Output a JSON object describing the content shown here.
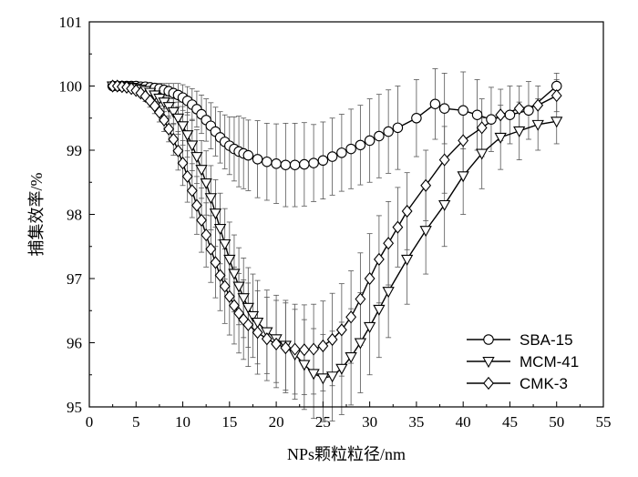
{
  "chart_data": {
    "type": "line",
    "xlabel": "NPs颗粒粒径/nm",
    "ylabel": "捕集效率/%",
    "xlim": [
      0,
      55
    ],
    "ylim": [
      95,
      101
    ],
    "xticks": [
      "0",
      "5",
      "10",
      "15",
      "20",
      "25",
      "30",
      "35",
      "40",
      "45",
      "50",
      "55"
    ],
    "yticks": [
      "95",
      "96",
      "97",
      "98",
      "99",
      "100",
      "101"
    ],
    "grid": false,
    "legend_position": "bottom-right",
    "series": [
      {
        "name": "SBA-15",
        "marker": "circle",
        "x": [
          2.5,
          3,
          3.5,
          4,
          4.5,
          5,
          5.5,
          6,
          6.5,
          7,
          7.5,
          8,
          8.5,
          9,
          9.5,
          10,
          10.5,
          11,
          11.5,
          12,
          12.5,
          13,
          13.5,
          14,
          14.5,
          15,
          15.5,
          16,
          16.5,
          17,
          18,
          19,
          20,
          21,
          22,
          23,
          24,
          25,
          26,
          27,
          28,
          29,
          30,
          31,
          32,
          33,
          35,
          37,
          38,
          40,
          41.5,
          43,
          45,
          47,
          50
        ],
        "y": [
          100.0,
          100.0,
          100.0,
          100.0,
          100.0,
          100.0,
          99.99,
          99.99,
          99.98,
          99.97,
          99.96,
          99.94,
          99.92,
          99.89,
          99.86,
          99.82,
          99.77,
          99.71,
          99.64,
          99.56,
          99.47,
          99.38,
          99.29,
          99.2,
          99.13,
          99.07,
          99.02,
          98.98,
          98.95,
          98.92,
          98.86,
          98.82,
          98.79,
          98.77,
          98.77,
          98.78,
          98.8,
          98.84,
          98.9,
          98.96,
          99.02,
          99.08,
          99.15,
          99.22,
          99.29,
          99.35,
          99.5,
          99.72,
          99.65,
          99.62,
          99.55,
          99.48,
          99.55,
          99.62,
          100.0
        ],
        "error": [
          0.0,
          0.0,
          0.0,
          0.0,
          0.0,
          0.02,
          0.03,
          0.04,
          0.05,
          0.06,
          0.08,
          0.1,
          0.12,
          0.15,
          0.18,
          0.2,
          0.22,
          0.25,
          0.28,
          0.3,
          0.33,
          0.36,
          0.38,
          0.4,
          0.42,
          0.45,
          0.5,
          0.55,
          0.55,
          0.55,
          0.6,
          0.6,
          0.62,
          0.65,
          0.65,
          0.65,
          0.6,
          0.6,
          0.6,
          0.6,
          0.62,
          0.62,
          0.65,
          0.65,
          0.65,
          0.65,
          0.6,
          0.55,
          0.55,
          0.6,
          0.55,
          0.5,
          0.45,
          0.45,
          0.2
        ]
      },
      {
        "name": "MCM-41",
        "marker": "triangle-down",
        "x": [
          2.5,
          3,
          3.5,
          4,
          4.5,
          5,
          5.5,
          6,
          6.5,
          7,
          7.5,
          8,
          8.5,
          9,
          9.5,
          10,
          10.5,
          11,
          11.5,
          12,
          12.5,
          13,
          13.5,
          14,
          14.5,
          15,
          15.5,
          16,
          16.5,
          17,
          17.5,
          18,
          19,
          20,
          21,
          22,
          23,
          24,
          25,
          26,
          27,
          28,
          29,
          30,
          31,
          32,
          34,
          36,
          38,
          40,
          42,
          44,
          46,
          48,
          50
        ],
        "y": [
          100.0,
          100.0,
          100.0,
          99.99,
          99.98,
          99.97,
          99.95,
          99.93,
          99.9,
          99.86,
          99.81,
          99.75,
          99.68,
          99.6,
          99.5,
          99.38,
          99.24,
          99.08,
          98.9,
          98.7,
          98.49,
          98.26,
          98.02,
          97.78,
          97.54,
          97.3,
          97.08,
          96.88,
          96.7,
          96.55,
          96.42,
          96.32,
          96.17,
          96.06,
          95.96,
          95.82,
          95.66,
          95.52,
          95.45,
          95.48,
          95.6,
          95.78,
          96.0,
          96.25,
          96.52,
          96.8,
          97.3,
          97.75,
          98.15,
          98.6,
          98.95,
          99.2,
          99.3,
          99.4,
          99.45
        ],
        "error": [
          0.0,
          0.0,
          0.0,
          0.02,
          0.03,
          0.04,
          0.05,
          0.06,
          0.08,
          0.1,
          0.12,
          0.15,
          0.18,
          0.2,
          0.25,
          0.3,
          0.35,
          0.4,
          0.42,
          0.45,
          0.5,
          0.5,
          0.52,
          0.55,
          0.55,
          0.58,
          0.6,
          0.6,
          0.62,
          0.62,
          0.65,
          0.65,
          0.65,
          0.68,
          0.7,
          0.7,
          0.7,
          0.7,
          0.68,
          0.7,
          0.72,
          0.75,
          0.78,
          0.75,
          0.75,
          0.72,
          0.7,
          0.68,
          0.65,
          0.6,
          0.55,
          0.5,
          0.45,
          0.4,
          0.35
        ]
      },
      {
        "name": "CMK-3",
        "marker": "diamond",
        "x": [
          2.5,
          3,
          3.5,
          4,
          4.5,
          5,
          5.5,
          6,
          6.5,
          7,
          7.5,
          8,
          8.5,
          9,
          9.5,
          10,
          10.5,
          11,
          11.5,
          12,
          12.5,
          13,
          13.5,
          14,
          14.5,
          15,
          15.5,
          16,
          16.5,
          17,
          18,
          19,
          20,
          21,
          22,
          23,
          24,
          25,
          26,
          27,
          28,
          29,
          30,
          31,
          32,
          33,
          34,
          36,
          38,
          40,
          42,
          44,
          46,
          48,
          50
        ],
        "y": [
          100.0,
          100.0,
          99.99,
          99.98,
          99.96,
          99.93,
          99.89,
          99.84,
          99.77,
          99.69,
          99.59,
          99.47,
          99.33,
          99.17,
          98.99,
          98.8,
          98.59,
          98.37,
          98.14,
          97.91,
          97.68,
          97.46,
          97.25,
          97.05,
          96.88,
          96.72,
          96.58,
          96.46,
          96.36,
          96.28,
          96.16,
          96.06,
          95.98,
          95.92,
          95.9,
          95.89,
          95.9,
          95.95,
          96.05,
          96.2,
          96.4,
          96.68,
          97.0,
          97.3,
          97.55,
          97.8,
          98.05,
          98.45,
          98.85,
          99.15,
          99.35,
          99.55,
          99.65,
          99.7,
          99.85
        ],
        "error": [
          0.0,
          0.0,
          0.02,
          0.03,
          0.04,
          0.05,
          0.06,
          0.08,
          0.1,
          0.12,
          0.15,
          0.18,
          0.2,
          0.25,
          0.3,
          0.35,
          0.4,
          0.42,
          0.45,
          0.5,
          0.5,
          0.52,
          0.55,
          0.55,
          0.58,
          0.6,
          0.6,
          0.62,
          0.62,
          0.65,
          0.65,
          0.65,
          0.68,
          0.7,
          0.7,
          0.7,
          0.7,
          0.7,
          0.72,
          0.72,
          0.72,
          0.72,
          0.7,
          0.68,
          0.65,
          0.62,
          0.6,
          0.55,
          0.52,
          0.5,
          0.45,
          0.4,
          0.35,
          0.3,
          0.25
        ]
      }
    ]
  }
}
